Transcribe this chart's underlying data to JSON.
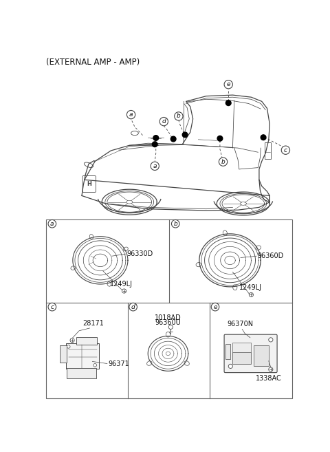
{
  "title": "(EXTERNAL AMP - AMP)",
  "bg_color": "#ffffff",
  "line_color": "#444444",
  "text_color": "#111111",
  "grid_line_color": "#666666",
  "title_font_size": 8.5,
  "callout_font_size": 7.0,
  "part_font_size": 7.0,
  "parts": {
    "a": [
      "96330D",
      "1249LJ"
    ],
    "b": [
      "96360D",
      "1249LJ"
    ],
    "c": [
      "28171",
      "96371"
    ],
    "d": [
      "1018AD",
      "96360U"
    ],
    "e": [
      "96370N",
      "1338AC"
    ]
  }
}
